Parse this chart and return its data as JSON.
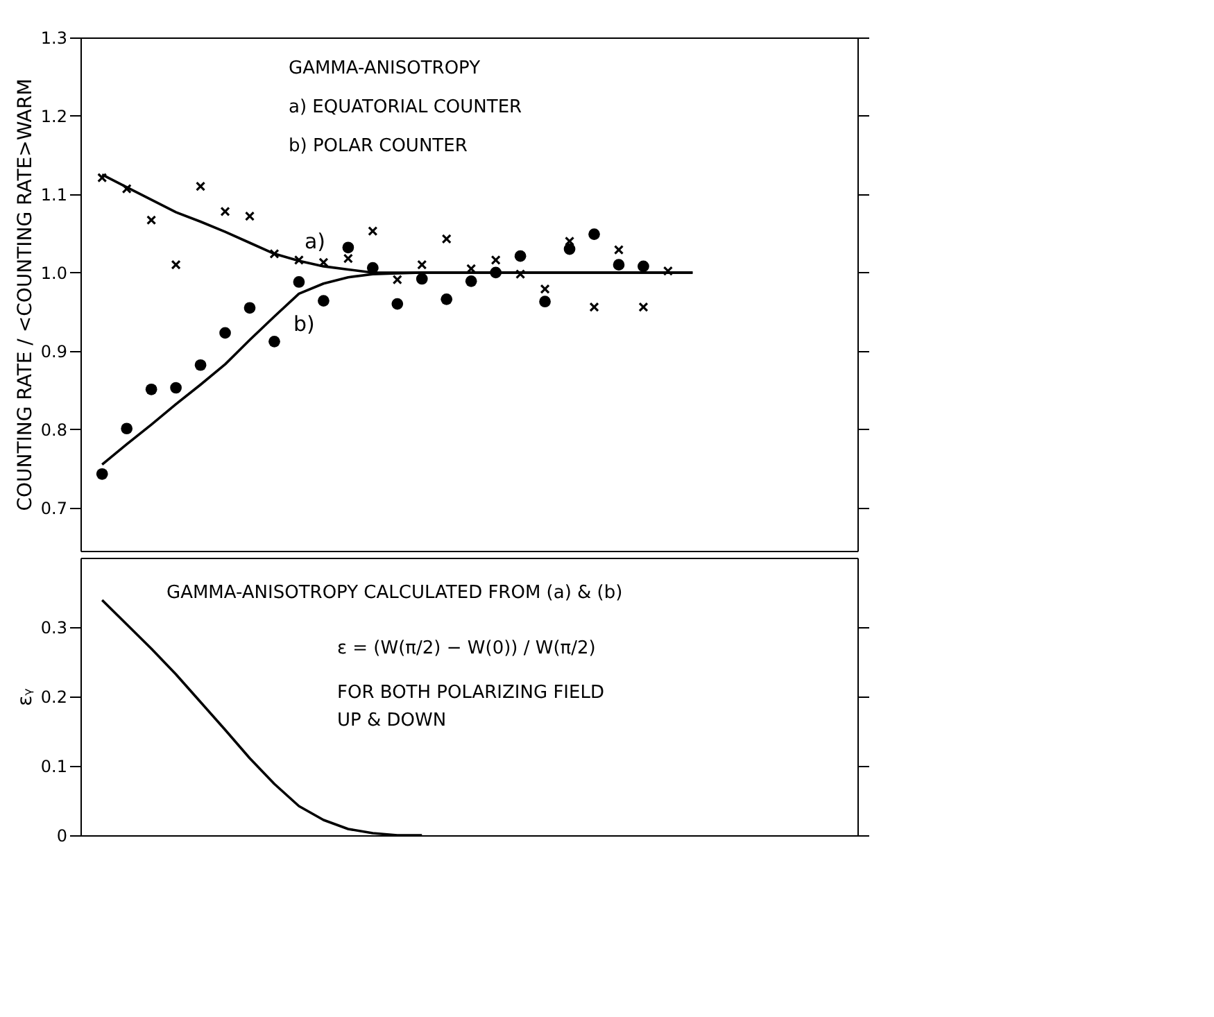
{
  "chart_data": [
    {
      "type": "scatter",
      "ylabel": "COUNTING RATE / <COUNTING RATE>WARM",
      "categories": [
        null,
        null,
        null,
        null,
        null,
        null,
        null,
        null,
        null,
        null,
        null,
        null,
        null,
        null,
        null,
        null,
        null,
        null,
        null,
        null,
        null,
        null,
        null,
        null,
        null
      ],
      "ylim": [
        0.645,
        1.3
      ],
      "yticks": [
        {
          "value": 0.7,
          "label": "0.7"
        },
        {
          "value": 0.8,
          "label": "0.8"
        },
        {
          "value": 0.9,
          "label": "0.9"
        },
        {
          "value": 1.0,
          "label": "1.0"
        },
        {
          "value": 1.1,
          "label": "1.1"
        },
        {
          "value": 1.2,
          "label": "1.2"
        },
        {
          "value": 1.3,
          "label": "1.3"
        }
      ],
      "tick_labels": "y",
      "grid": false,
      "annotations": [
        "GAMMA-ANISOTROPY",
        "a) EQUATORIAL COUNTER",
        "b) POLAR COUNTER"
      ],
      "series": [
        {
          "type": "scatter",
          "marker": "cross",
          "color": "#000000",
          "values": [
            1.121,
            1.107,
            1.067,
            1.01,
            1.11,
            1.078,
            1.072,
            1.024,
            1.016,
            1.013,
            1.018,
            1.053,
            0.991,
            1.01,
            1.043,
            1.005,
            1.016,
            0.998,
            0.979,
            1.04,
            0.956,
            1.029,
            0.956,
            1.002,
            null
          ]
        },
        {
          "type": "scatter",
          "marker": "circle",
          "color": "#000000",
          "values": [
            0.743,
            0.801,
            0.851,
            0.853,
            0.882,
            0.923,
            0.955,
            0.912,
            0.988,
            0.964,
            1.032,
            1.006,
            0.96,
            0.992,
            0.966,
            0.989,
            1.0,
            1.021,
            0.963,
            1.03,
            1.049,
            1.01,
            1.008,
            null,
            null
          ]
        },
        {
          "type": "line",
          "name": "a)",
          "line_style": "solid",
          "color": "#000000",
          "values": [
            1.125,
            1.109,
            1.093,
            1.077,
            1.065,
            1.052,
            1.038,
            1.024,
            1.015,
            1.008,
            1.004,
            1.0,
            1.0,
            1.0,
            1.0,
            1.0,
            1.0,
            1.0,
            1.0,
            1.0,
            1.0,
            1.0,
            1.0,
            1.0,
            1.0
          ]
        },
        {
          "type": "line",
          "name": "b)",
          "line_style": "solid",
          "color": "#000000",
          "values": [
            0.755,
            0.781,
            0.806,
            0.832,
            0.857,
            0.883,
            0.914,
            0.944,
            0.973,
            0.986,
            0.994,
            0.998,
            0.999,
            1.0,
            1.0,
            1.0,
            1.0,
            1.0,
            1.0,
            1.0,
            1.0,
            1.0,
            1.0,
            1.0,
            1.0
          ]
        }
      ]
    },
    {
      "type": "line",
      "ylabel": "εᵧ",
      "categories": [
        null,
        null,
        null,
        null,
        null,
        null,
        null,
        null,
        null,
        null,
        null,
        null,
        null,
        null,
        null,
        null,
        null,
        null,
        null,
        null,
        null,
        null,
        null,
        null,
        null
      ],
      "ylim": [
        0,
        0.4
      ],
      "yticks": [
        {
          "value": 0,
          "label": "0"
        },
        {
          "value": 0.1,
          "label": "0.1"
        },
        {
          "value": 0.2,
          "label": "0.2"
        },
        {
          "value": 0.3,
          "label": "0.3"
        }
      ],
      "tick_labels": "y",
      "grid": false,
      "annotations": [
        "GAMMA-ANISOTROPY CALCULATED FROM (a) & (b)",
        "ε = (W(π/2) − W(0)) / W(π/2)",
        "FOR BOTH POLARIZING FIELD",
        "UP & DOWN"
      ],
      "series": [
        {
          "color": "#000000",
          "line_style": "solid",
          "values": [
            0.339,
            0.304,
            0.269,
            0.232,
            0.192,
            0.152,
            0.111,
            0.074,
            0.042,
            0.022,
            0.009,
            0.003,
            0.0,
            0.0,
            null,
            null,
            null,
            null,
            null,
            null,
            null,
            null,
            null,
            null,
            null
          ]
        }
      ]
    }
  ]
}
